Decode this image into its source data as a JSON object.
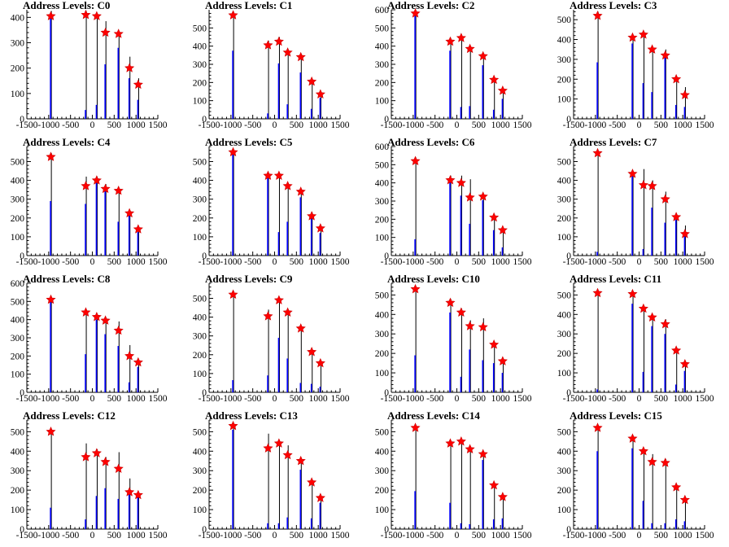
{
  "chart_data": [
    {
      "type": "bar",
      "title": "Address Levels: C0",
      "x": [
        -950,
        -150,
        100,
        300,
        600,
        850,
        1050
      ],
      "peaks": [
        405,
        410,
        405,
        340,
        335,
        200,
        135
      ],
      "black": [
        425,
        425,
        415,
        385,
        345,
        245,
        160
      ],
      "blue": [
        410,
        35,
        55,
        215,
        280,
        160,
        75
      ],
      "ylim": [
        0,
        430
      ],
      "yticks": [
        0,
        100,
        200,
        300,
        400
      ],
      "xlim": [
        -1500,
        1500
      ],
      "xticks": [
        -1500,
        -1000,
        -500,
        0,
        500,
        1000,
        1500
      ]
    },
    {
      "type": "bar",
      "title": "Address Levels: C1",
      "x": [
        -950,
        -150,
        100,
        300,
        600,
        850,
        1050
      ],
      "peaks": [
        570,
        405,
        425,
        365,
        340,
        205,
        135
      ],
      "black": [
        590,
        430,
        450,
        375,
        345,
        215,
        150
      ],
      "blue": [
        375,
        30,
        305,
        80,
        255,
        55,
        115
      ],
      "ylim": [
        0,
        600
      ],
      "yticks": [
        0,
        100,
        200,
        300,
        400,
        500
      ],
      "xlim": [
        -1500,
        1500
      ],
      "xticks": [
        -1500,
        -1000,
        -500,
        0,
        500,
        1000,
        1500
      ]
    },
    {
      "type": "bar",
      "title": "Address Levels: C2",
      "x": [
        -950,
        -150,
        100,
        300,
        600,
        850,
        1050
      ],
      "peaks": [
        580,
        425,
        445,
        385,
        345,
        215,
        155
      ],
      "black": [
        600,
        445,
        450,
        395,
        350,
        225,
        165
      ],
      "blue": [
        580,
        375,
        65,
        70,
        295,
        50,
        110
      ],
      "ylim": [
        0,
        600
      ],
      "yticks": [
        0,
        100,
        200,
        300,
        400,
        500,
        600
      ],
      "xlim": [
        -1500,
        1500
      ],
      "xticks": [
        -1500,
        -1000,
        -500,
        0,
        500,
        1000,
        1500
      ]
    },
    {
      "type": "bar",
      "title": "Address Levels: C3",
      "x": [
        -950,
        -150,
        100,
        300,
        600,
        850,
        1050
      ],
      "peaks": [
        520,
        410,
        425,
        350,
        320,
        200,
        120
      ],
      "black": [
        540,
        420,
        435,
        355,
        350,
        210,
        160
      ],
      "blue": [
        285,
        380,
        180,
        135,
        320,
        70,
        60
      ],
      "ylim": [
        0,
        550
      ],
      "yticks": [
        0,
        100,
        200,
        300,
        400,
        500
      ],
      "xlim": [
        -1500,
        1500
      ],
      "xticks": [
        -1500,
        -1000,
        -500,
        0,
        500,
        1000,
        1500
      ]
    },
    {
      "type": "bar",
      "title": "Address Levels: C4",
      "x": [
        -950,
        -150,
        100,
        300,
        600,
        850,
        1050
      ],
      "peaks": [
        525,
        370,
        400,
        355,
        345,
        225,
        140
      ],
      "black": [
        545,
        420,
        420,
        380,
        355,
        240,
        150
      ],
      "blue": [
        290,
        275,
        390,
        370,
        180,
        225,
        125
      ],
      "ylim": [
        0,
        580
      ],
      "yticks": [
        0,
        100,
        200,
        300,
        400,
        500
      ],
      "xlim": [
        -1500,
        1500
      ],
      "xticks": [
        -1500,
        -1000,
        -500,
        0,
        500,
        1000,
        1500
      ]
    },
    {
      "type": "bar",
      "title": "Address Levels: C5",
      "x": [
        -950,
        -150,
        100,
        300,
        600,
        850,
        1050
      ],
      "peaks": [
        550,
        425,
        425,
        370,
        340,
        210,
        145
      ],
      "black": [
        560,
        430,
        440,
        375,
        350,
        230,
        155
      ],
      "blue": [
        550,
        420,
        125,
        180,
        310,
        220,
        120
      ],
      "ylim": [
        0,
        580
      ],
      "yticks": [
        0,
        100,
        200,
        300,
        400,
        500
      ],
      "xlim": [
        -1500,
        1500
      ],
      "xticks": [
        -1500,
        -1000,
        -500,
        0,
        500,
        1000,
        1500
      ]
    },
    {
      "type": "bar",
      "title": "Address Levels: C6",
      "x": [
        -950,
        -150,
        100,
        300,
        600,
        850,
        1050
      ],
      "peaks": [
        520,
        415,
        400,
        320,
        325,
        210,
        140
      ],
      "black": [
        540,
        440,
        440,
        420,
        340,
        220,
        150
      ],
      "blue": [
        90,
        405,
        330,
        175,
        305,
        140,
        45
      ],
      "ylim": [
        0,
        600
      ],
      "yticks": [
        0,
        100,
        200,
        300,
        400,
        500,
        600
      ],
      "xlim": [
        -1500,
        1500
      ],
      "xticks": [
        -1500,
        -1000,
        -500,
        0,
        500,
        1000,
        1500
      ]
    },
    {
      "type": "bar",
      "title": "Address Levels: C7",
      "x": [
        -950,
        -150,
        100,
        300,
        600,
        850,
        1050
      ],
      "peaks": [
        545,
        435,
        375,
        370,
        300,
        205,
        115
      ],
      "black": [
        550,
        440,
        460,
        400,
        340,
        210,
        160
      ],
      "blue": [
        20,
        430,
        35,
        255,
        175,
        190,
        110
      ],
      "ylim": [
        0,
        580
      ],
      "yticks": [
        0,
        100,
        200,
        300,
        400,
        500
      ],
      "xlim": [
        -1500,
        1500
      ],
      "xticks": [
        -1500,
        -1000,
        -500,
        0,
        500,
        1000,
        1500
      ]
    },
    {
      "type": "bar",
      "title": "Address Levels: C8",
      "x": [
        -950,
        -150,
        100,
        300,
        600,
        850,
        1050
      ],
      "peaks": [
        510,
        440,
        415,
        395,
        340,
        200,
        165
      ],
      "black": [
        525,
        450,
        425,
        400,
        390,
        260,
        170
      ],
      "blue": [
        510,
        210,
        400,
        320,
        255,
        55,
        140
      ],
      "ylim": [
        0,
        600
      ],
      "yticks": [
        0,
        100,
        200,
        300,
        400,
        500,
        600
      ],
      "xlim": [
        -1500,
        1500
      ],
      "xticks": [
        -1500,
        -1000,
        -500,
        0,
        500,
        1000,
        1500
      ]
    },
    {
      "type": "bar",
      "title": "Address Levels: C9",
      "x": [
        -950,
        -150,
        100,
        300,
        600,
        850,
        1050
      ],
      "peaks": [
        520,
        405,
        490,
        425,
        340,
        215,
        155
      ],
      "black": [
        540,
        440,
        500,
        440,
        345,
        230,
        165
      ],
      "blue": [
        65,
        90,
        290,
        180,
        50,
        45,
        30
      ],
      "ylim": [
        0,
        580
      ],
      "yticks": [
        0,
        100,
        200,
        300,
        400,
        500
      ],
      "xlim": [
        -1500,
        1500
      ],
      "xticks": [
        -1500,
        -1000,
        -500,
        0,
        500,
        1000,
        1500
      ]
    },
    {
      "type": "bar",
      "title": "Address Levels: C10",
      "x": [
        -950,
        -150,
        100,
        300,
        600,
        850,
        1050
      ],
      "peaks": [
        530,
        460,
        410,
        340,
        335,
        245,
        160
      ],
      "black": [
        540,
        480,
        430,
        370,
        380,
        255,
        170
      ],
      "blue": [
        190,
        410,
        80,
        220,
        165,
        150,
        100
      ],
      "ylim": [
        0,
        560
      ],
      "yticks": [
        0,
        100,
        200,
        300,
        400,
        500
      ],
      "xlim": [
        -1500,
        1500
      ],
      "xticks": [
        -1500,
        -1000,
        -500,
        0,
        500,
        1000,
        1500
      ]
    },
    {
      "type": "bar",
      "title": "Address Levels: C11",
      "x": [
        -950,
        -150,
        100,
        300,
        600,
        850,
        1050
      ],
      "peaks": [
        510,
        505,
        430,
        385,
        350,
        215,
        145
      ],
      "black": [
        520,
        515,
        440,
        390,
        375,
        230,
        155
      ],
      "blue": [
        15,
        455,
        105,
        340,
        300,
        40,
        110
      ],
      "ylim": [
        0,
        560
      ],
      "yticks": [
        0,
        100,
        200,
        300,
        400,
        500
      ],
      "xlim": [
        -1500,
        1500
      ],
      "xticks": [
        -1500,
        -1000,
        -500,
        0,
        500,
        1000,
        1500
      ]
    },
    {
      "type": "bar",
      "title": "Address Levels: C12",
      "x": [
        -950,
        -150,
        100,
        300,
        600,
        850,
        1050
      ],
      "peaks": [
        500,
        370,
        390,
        345,
        310,
        190,
        175
      ],
      "black": [
        510,
        440,
        410,
        370,
        395,
        260,
        185
      ],
      "blue": [
        110,
        50,
        170,
        210,
        155,
        180,
        165
      ],
      "ylim": [
        0,
        560
      ],
      "yticks": [
        0,
        100,
        200,
        300,
        400,
        500
      ],
      "xlim": [
        -1500,
        1500
      ],
      "xticks": [
        -1500,
        -1000,
        -500,
        0,
        500,
        1000,
        1500
      ]
    },
    {
      "type": "bar",
      "title": "Address Levels: C13",
      "x": [
        -950,
        -150,
        100,
        300,
        600,
        850,
        1050
      ],
      "peaks": [
        530,
        415,
        440,
        380,
        350,
        240,
        160
      ],
      "black": [
        545,
        490,
        450,
        430,
        360,
        250,
        170
      ],
      "blue": [
        510,
        30,
        30,
        60,
        305,
        55,
        135
      ],
      "ylim": [
        0,
        560
      ],
      "yticks": [
        0,
        100,
        200,
        300,
        400,
        500
      ],
      "xlim": [
        -1500,
        1500
      ],
      "xticks": [
        -1500,
        -1000,
        -500,
        0,
        500,
        1000,
        1500
      ]
    },
    {
      "type": "bar",
      "title": "Address Levels: C14",
      "x": [
        -950,
        -150,
        100,
        300,
        600,
        850,
        1050
      ],
      "peaks": [
        520,
        440,
        450,
        410,
        385,
        225,
        165
      ],
      "black": [
        535,
        445,
        460,
        425,
        390,
        235,
        170
      ],
      "blue": [
        195,
        135,
        30,
        25,
        355,
        50,
        55
      ],
      "ylim": [
        0,
        560
      ],
      "yticks": [
        0,
        100,
        200,
        300,
        400,
        500
      ],
      "xlim": [
        -1500,
        1500
      ],
      "xticks": [
        -1500,
        -1000,
        -500,
        0,
        500,
        1000,
        1500
      ]
    },
    {
      "type": "bar",
      "title": "Address Levels: C15",
      "x": [
        -950,
        -150,
        100,
        300,
        600,
        850,
        1050
      ],
      "peaks": [
        520,
        465,
        400,
        345,
        340,
        215,
        150
      ],
      "black": [
        530,
        480,
        410,
        385,
        360,
        225,
        160
      ],
      "blue": [
        400,
        415,
        145,
        30,
        30,
        50,
        40
      ],
      "ylim": [
        0,
        560
      ],
      "yticks": [
        0,
        100,
        200,
        300,
        400,
        500
      ],
      "xlim": [
        -1500,
        1500
      ],
      "xticks": [
        -1500,
        -1000,
        -500,
        0,
        500,
        1000,
        1500
      ]
    }
  ]
}
